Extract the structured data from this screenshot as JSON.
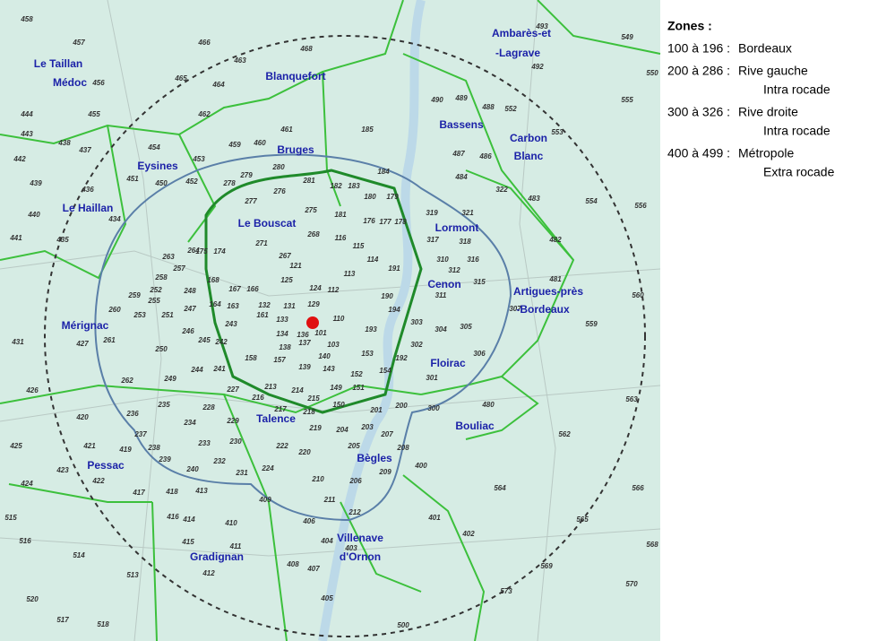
{
  "map": {
    "communes": [
      {
        "lines": [
          "Le Taillan",
          "Médoc"
        ]
      },
      {
        "lines": [
          "Blanquefort"
        ]
      },
      {
        "lines": [
          "Ambarès-et",
          "-Lagrave"
        ]
      },
      {
        "lines": [
          "Bassens"
        ]
      },
      {
        "lines": [
          "Carbon",
          "Blanc"
        ]
      },
      {
        "lines": [
          "Bruges"
        ]
      },
      {
        "lines": [
          "Eysines"
        ]
      },
      {
        "lines": [
          "Le Haillan"
        ]
      },
      {
        "lines": [
          "Le Bouscat"
        ]
      },
      {
        "lines": [
          "Lormont"
        ]
      },
      {
        "lines": [
          "Cenon"
        ]
      },
      {
        "lines": [
          "Artigues-près",
          "-Bordeaux"
        ]
      },
      {
        "lines": [
          "Mérignac"
        ]
      },
      {
        "lines": [
          "Floirac"
        ]
      },
      {
        "lines": [
          "Bouliac"
        ]
      },
      {
        "lines": [
          "Talence"
        ]
      },
      {
        "lines": [
          "Pessac"
        ]
      },
      {
        "lines": [
          "Bègles"
        ]
      },
      {
        "lines": [
          "Gradignan"
        ]
      },
      {
        "lines": [
          "Villenave",
          "d'Ornon"
        ]
      }
    ],
    "zones": [
      "458",
      "457",
      "466",
      "463",
      "468",
      "465",
      "464",
      "456",
      "462",
      "455",
      "444",
      "443",
      "438",
      "437",
      "442",
      "439",
      "436",
      "434",
      "440",
      "441",
      "435",
      "454",
      "453",
      "451",
      "450",
      "452",
      "459",
      "460",
      "461",
      "185",
      "490",
      "489",
      "488",
      "552",
      "553",
      "555",
      "549",
      "550",
      "493",
      "492",
      "487",
      "486",
      "484",
      "322",
      "483",
      "554",
      "556",
      "482",
      "481",
      "560",
      "559",
      "319",
      "321",
      "317",
      "318",
      "310",
      "316",
      "312",
      "315",
      "311",
      "307",
      "303",
      "304",
      "305",
      "302",
      "306",
      "301",
      "300",
      "480",
      "563",
      "562",
      "564",
      "566",
      "565",
      "568",
      "569",
      "570",
      "573",
      "401",
      "402",
      "403",
      "404",
      "405",
      "407",
      "408",
      "406",
      "212",
      "211",
      "210",
      "209",
      "208",
      "207",
      "205",
      "206",
      "204",
      "203",
      "201",
      "200",
      "400",
      "500",
      "416",
      "414",
      "410",
      "409",
      "413",
      "411",
      "415",
      "412",
      "513",
      "514",
      "516",
      "515",
      "520",
      "517",
      "518",
      "425",
      "424",
      "423",
      "422",
      "421",
      "420",
      "426",
      "431",
      "427",
      "261",
      "260",
      "259",
      "253",
      "250",
      "262",
      "249",
      "244",
      "241",
      "246",
      "245",
      "242",
      "235",
      "228",
      "227",
      "236",
      "237",
      "234",
      "229",
      "230",
      "233",
      "232",
      "231",
      "238",
      "239",
      "240",
      "419",
      "417",
      "418",
      "224",
      "222",
      "220",
      "216",
      "217",
      "218",
      "219",
      "215",
      "214",
      "213",
      "149",
      "151",
      "150",
      "154",
      "152",
      "153",
      "143",
      "139",
      "140",
      "103",
      "137",
      "138",
      "136",
      "134",
      "133",
      "101",
      "193",
      "192",
      "194",
      "190",
      "191",
      "114",
      "115",
      "116",
      "113",
      "112",
      "124",
      "129",
      "110",
      "176",
      "177",
      "178",
      "180",
      "179",
      "181",
      "182",
      "183",
      "184",
      "279",
      "276",
      "277",
      "278",
      "280",
      "281",
      "275",
      "271",
      "268",
      "267",
      "264",
      "263",
      "258",
      "257",
      "175",
      "174",
      "168",
      "167",
      "166",
      "164",
      "163",
      "161",
      "132",
      "131",
      "125",
      "121",
      "255",
      "248",
      "252",
      "251",
      "247",
      "243",
      "158",
      "157"
    ]
  },
  "legend": {
    "title": "Zones :",
    "entries": [
      {
        "range": "100 à 196 :",
        "lines": [
          "Bordeaux"
        ]
      },
      {
        "range": "200 à 286 :",
        "lines": [
          "Rive gauche",
          "Intra rocade"
        ]
      },
      {
        "range": "300 à 326 :",
        "lines": [
          "Rive droite",
          "Intra rocade"
        ]
      },
      {
        "range": "400 à 499 :",
        "lines": [
          "Métropole",
          "Extra rocade"
        ]
      }
    ]
  }
}
